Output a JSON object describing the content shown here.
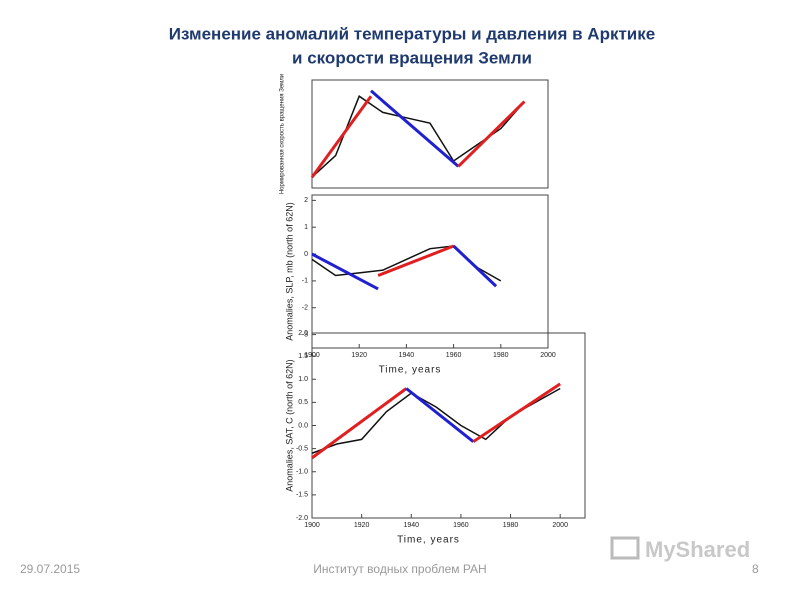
{
  "slide": {
    "title_line1": "Изменение аномалий температуры и давления в Арктике",
    "title_line2": "и скорости вращения Земли",
    "date": "29.07.2015",
    "footer": "Институт водных проблем РАН",
    "page": "8",
    "logo": "MyShared"
  },
  "chart_data": [
    {
      "type": "line",
      "ylabel": "Нормированная скорость вращения Земли",
      "xlim": [
        1900,
        2000
      ],
      "ylim": [
        0,
        1
      ],
      "series": [
        {
          "color": "#111111",
          "x": [
            1900,
            1910,
            1920,
            1930,
            1940,
            1950,
            1960,
            1970,
            1980,
            1990
          ],
          "values": [
            0.1,
            0.3,
            0.85,
            0.7,
            0.65,
            0.6,
            0.25,
            0.4,
            0.55,
            0.8
          ]
        },
        {
          "color": "#e02020",
          "x": [
            1900,
            1925
          ],
          "values": [
            0.1,
            0.85
          ]
        },
        {
          "color": "#2020d0",
          "x": [
            1925,
            1962
          ],
          "values": [
            0.9,
            0.2
          ]
        },
        {
          "color": "#e02020",
          "x": [
            1962,
            1990
          ],
          "values": [
            0.2,
            0.8
          ]
        }
      ]
    },
    {
      "type": "line",
      "ylabel": "Anomalies, SLP, mb (north of 62N)",
      "xlabel": "Time, years",
      "xlim": [
        1900,
        2000
      ],
      "ylim": [
        -3.5,
        2.2
      ],
      "xticks": [
        1900,
        1920,
        1940,
        1960,
        1980,
        2000
      ],
      "yticks": [
        -3,
        -2,
        -1,
        0,
        1,
        2
      ],
      "series": [
        {
          "color": "#111111",
          "x": [
            1900,
            1910,
            1920,
            1930,
            1940,
            1950,
            1960,
            1970,
            1980
          ],
          "values": [
            -0.2,
            -0.8,
            -0.7,
            -0.6,
            -0.2,
            0.2,
            0.3,
            -0.5,
            -1.0
          ]
        },
        {
          "color": "#2020d0",
          "x": [
            1900,
            1928
          ],
          "values": [
            0,
            -1.3
          ]
        },
        {
          "color": "#e02020",
          "x": [
            1928,
            1960
          ],
          "values": [
            -0.8,
            0.3
          ]
        },
        {
          "color": "#2020d0",
          "x": [
            1960,
            1978
          ],
          "values": [
            0.3,
            -1.2
          ]
        }
      ]
    },
    {
      "type": "line",
      "ylabel": "Anomalies, SAT, C (north of 62N)",
      "xlabel": "Time, years",
      "xlim": [
        1900,
        2010
      ],
      "ylim": [
        -2,
        2
      ],
      "xticks": [
        1900,
        1920,
        1940,
        1960,
        1980,
        2000
      ],
      "yticks": [
        {
          "value": -2,
          "label": "-2.0"
        },
        {
          "value": -1.5,
          "label": "-1.5"
        },
        {
          "value": -1,
          "label": "-1.0"
        },
        {
          "value": -0.5,
          "label": "-0.5"
        },
        {
          "value": 0,
          "label": "0.0"
        },
        {
          "value": 0.5,
          "label": "0.5"
        },
        {
          "value": 1,
          "label": "1.0"
        },
        {
          "value": 1.5,
          "label": "1.5"
        },
        {
          "value": 2,
          "label": "2.0"
        }
      ],
      "series": [
        {
          "color": "#111111",
          "x": [
            1900,
            1910,
            1920,
            1930,
            1940,
            1950,
            1960,
            1970,
            1980,
            1990,
            2000
          ],
          "values": [
            -0.6,
            -0.4,
            -0.3,
            0.3,
            0.7,
            0.4,
            0.0,
            -0.3,
            0.2,
            0.5,
            0.8
          ]
        },
        {
          "color": "#e02020",
          "x": [
            1900,
            1938
          ],
          "values": [
            -0.7,
            0.8
          ]
        },
        {
          "color": "#2020d0",
          "x": [
            1938,
            1965
          ],
          "values": [
            0.8,
            -0.35
          ]
        },
        {
          "color": "#e02020",
          "x": [
            1965,
            2000
          ],
          "values": [
            -0.35,
            0.9
          ]
        }
      ]
    }
  ]
}
